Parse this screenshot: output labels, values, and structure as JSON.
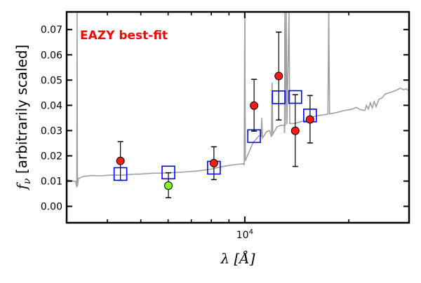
{
  "chart_data": {
    "type": "scatter",
    "title": "",
    "annotation": "EAZY best-fit",
    "annotation_color": "#ff0000",
    "xlabel_symbol": "λ",
    "xlabel_unit": "[Å]",
    "ylabel_symbol": "f",
    "ylabel_subscript": "ν",
    "ylabel_text": "[arbitrarily scaled]",
    "xscale": "log",
    "xlim": [
      3050,
      29900
    ],
    "ylim": [
      -0.0065,
      0.077
    ],
    "x_ticks": [
      {
        "value": 10000,
        "base": "10",
        "exp": "4"
      }
    ],
    "x_minor_ticks": [
      4000,
      5000,
      6000,
      7000,
      8000,
      9000,
      20000
    ],
    "y_ticks": [
      {
        "value": 0.0,
        "label": "0.00"
      },
      {
        "value": 0.01,
        "label": "0.01"
      },
      {
        "value": 0.02,
        "label": "0.02"
      },
      {
        "value": 0.03,
        "label": "0.03"
      },
      {
        "value": 0.04,
        "label": "0.04"
      },
      {
        "value": 0.05,
        "label": "0.05"
      },
      {
        "value": 0.06,
        "label": "0.06"
      },
      {
        "value": 0.07,
        "label": "0.07"
      }
    ],
    "grid": false,
    "colors": {
      "spectrum": "#a0a0a0",
      "observed": "#ff1a1a",
      "observed_flagged": "#80ff20",
      "model": "#0000ff",
      "errorbar": "#000000"
    },
    "spectrum": [
      [
        3050,
        0.0105
      ],
      [
        3150,
        0.0102
      ],
      [
        3240,
        0.0098
      ],
      [
        3262,
        0.0075
      ],
      [
        3270,
        0.077
      ],
      [
        3278,
        0.008
      ],
      [
        3300,
        0.011
      ],
      [
        3400,
        0.0118
      ],
      [
        3590,
        0.0122
      ],
      [
        3800,
        0.0121
      ],
      [
        4130,
        0.0124
      ],
      [
        4400,
        0.0123
      ],
      [
        4700,
        0.0127
      ],
      [
        4980,
        0.0128
      ],
      [
        5400,
        0.0131
      ],
      [
        5800,
        0.0132
      ],
      [
        6290,
        0.0134
      ],
      [
        6700,
        0.0136
      ],
      [
        7300,
        0.014
      ],
      [
        7950,
        0.0147
      ],
      [
        8500,
        0.0156
      ],
      [
        9000,
        0.0162
      ],
      [
        9590,
        0.0167
      ],
      [
        9900,
        0.0168
      ],
      [
        9960,
        0.0165
      ],
      [
        10000,
        0.077
      ],
      [
        10040,
        0.018
      ],
      [
        10140,
        0.0195
      ],
      [
        10400,
        0.023
      ],
      [
        10600,
        0.0255
      ],
      [
        10780,
        0.0265
      ],
      [
        11000,
        0.028
      ],
      [
        11150,
        0.0278
      ],
      [
        11200,
        0.035
      ],
      [
        11250,
        0.027
      ],
      [
        11560,
        0.0295
      ],
      [
        11800,
        0.03
      ],
      [
        11950,
        0.0275
      ],
      [
        12000,
        0.049
      ],
      [
        12050,
        0.0285
      ],
      [
        12400,
        0.0315
      ],
      [
        12690,
        0.032
      ],
      [
        13000,
        0.0322
      ],
      [
        13040,
        0.029
      ],
      [
        13060,
        0.077
      ],
      [
        13100,
        0.032
      ],
      [
        13180,
        0.077
      ],
      [
        13250,
        0.0325
      ],
      [
        13430,
        0.077
      ],
      [
        13500,
        0.0328
      ],
      [
        13940,
        0.0328
      ],
      [
        14500,
        0.0335
      ],
      [
        15000,
        0.034
      ],
      [
        15500,
        0.035
      ],
      [
        16040,
        0.0358
      ],
      [
        16800,
        0.0362
      ],
      [
        17400,
        0.0365
      ],
      [
        17500,
        0.077
      ],
      [
        17600,
        0.0366
      ],
      [
        18470,
        0.0372
      ],
      [
        19500,
        0.038
      ],
      [
        20500,
        0.0385
      ],
      [
        21000,
        0.0392
      ],
      [
        21700,
        0.0382
      ],
      [
        22280,
        0.038
      ],
      [
        22500,
        0.04
      ],
      [
        22800,
        0.0385
      ],
      [
        23100,
        0.041
      ],
      [
        23400,
        0.039
      ],
      [
        23700,
        0.0415
      ],
      [
        24000,
        0.0395
      ],
      [
        24480,
        0.0425
      ],
      [
        25000,
        0.043
      ],
      [
        25500,
        0.0445
      ],
      [
        26200,
        0.045
      ],
      [
        26880,
        0.0455
      ],
      [
        27500,
        0.046
      ],
      [
        28200,
        0.0468
      ],
      [
        28800,
        0.0462
      ],
      [
        29300,
        0.0465
      ],
      [
        29900,
        0.0458
      ]
    ],
    "observed": [
      {
        "lambda": 4365,
        "flux": 0.018,
        "err_low": 0.0103,
        "err_high": 0.0256,
        "model": 0.0128,
        "flagged": false
      },
      {
        "lambda": 6010,
        "flux": 0.0082,
        "err_low": 0.0034,
        "err_high": 0.0133,
        "model": 0.0134,
        "flagged": true
      },
      {
        "lambda": 8140,
        "flux": 0.0171,
        "err_low": 0.0106,
        "err_high": 0.0236,
        "model": 0.0153,
        "flagged": false
      },
      {
        "lambda": 10640,
        "flux": 0.0399,
        "err_low": 0.0298,
        "err_high": 0.0503,
        "model": 0.0278,
        "flagged": false
      },
      {
        "lambda": 12540,
        "flux": 0.0516,
        "err_low": 0.0342,
        "err_high": 0.069,
        "model": 0.0432,
        "flagged": false
      },
      {
        "lambda": 14000,
        "flux": 0.0299,
        "err_low": 0.0158,
        "err_high": 0.0442,
        "model": 0.0433,
        "flagged": false
      },
      {
        "lambda": 15450,
        "flux": 0.0344,
        "err_low": 0.0251,
        "err_high": 0.0439,
        "model": 0.036,
        "flagged": false
      }
    ]
  }
}
